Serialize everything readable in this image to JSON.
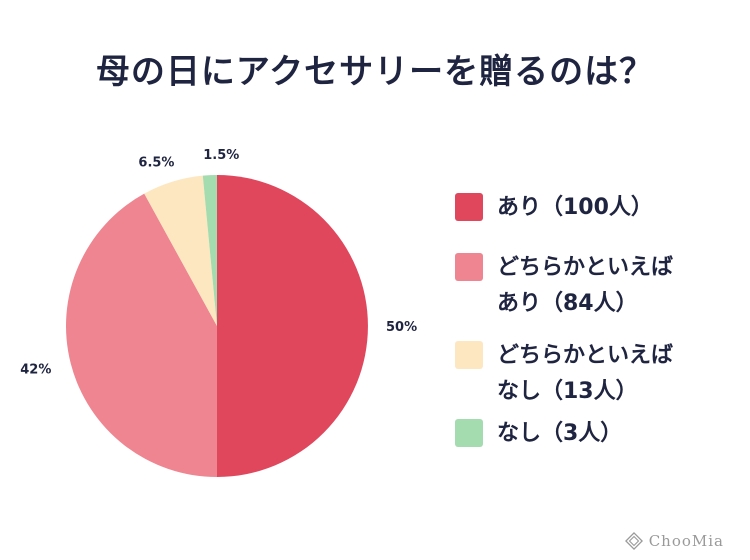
{
  "chart_data": {
    "type": "pie",
    "title": "母の日にアクセサリーを贈るのは？",
    "categories": [
      "あり（100人）",
      "どちらかといえば あり（84人）",
      "どちらかといえば なし（13人）",
      "なし（3人）"
    ],
    "legend": [
      {
        "lines": [
          "あり（100人）"
        ],
        "color": "#e0465c"
      },
      {
        "lines": [
          "どちらかといえば",
          "あり（84人）"
        ],
        "color": "#ee8590"
      },
      {
        "lines": [
          "どちらかといえば",
          "なし（13人）"
        ],
        "color": "#fde7c0"
      },
      {
        "lines": [
          "なし（3人）"
        ],
        "color": "#a4dcb0"
      }
    ],
    "values": [
      50,
      42,
      6.5,
      1.5
    ],
    "value_labels": [
      "50%",
      "42%",
      "6.5%",
      "1.5%"
    ],
    "legend_placement": "right"
  },
  "watermark": {
    "text": "ChooMia",
    "icon": "diamond-logo-icon"
  }
}
